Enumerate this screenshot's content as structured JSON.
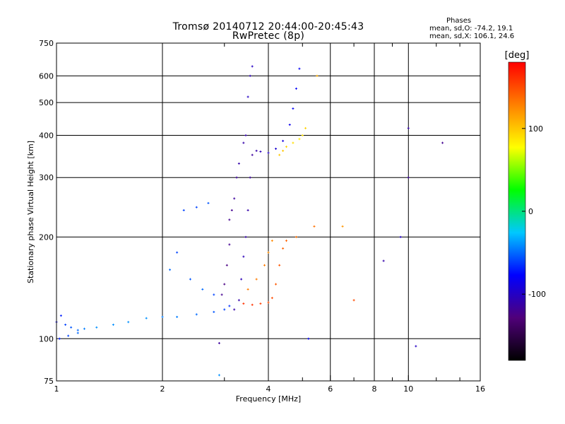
{
  "chart_data": {
    "type": "scatter",
    "title": "Tromsø 20140712 20:44:00-20:45:43",
    "subtitle": "RwPretec (8p)",
    "xlabel": "Frequency [MHz]",
    "ylabel": "Stationary phase Virtual Height [km]",
    "x_scale": "log",
    "y_scale": "log",
    "xlim": [
      1,
      16
    ],
    "ylim": [
      75,
      750
    ],
    "x_ticks": [
      1,
      2,
      4,
      6,
      8,
      10,
      16
    ],
    "x_tick_labels": [
      "1",
      "2",
      "4",
      "6",
      "8",
      "10",
      "16"
    ],
    "x_minor_ticks": [
      3,
      5,
      7,
      9,
      12,
      14
    ],
    "y_ticks": [
      75,
      100,
      200,
      300,
      400,
      500,
      600,
      750
    ],
    "y_tick_labels": [
      "75",
      "100",
      "200",
      "300",
      "400",
      "500",
      "600",
      "750"
    ],
    "grid": true,
    "stats": {
      "title": "Phases",
      "line1": "mean, sd,O: -74.2, 19.1",
      "line2": "mean, sd,X: 106.1, 24.6"
    },
    "colorbar": {
      "unit": "[deg]",
      "range": [
        -180,
        180
      ],
      "tick_values": [
        100,
        0,
        -100
      ],
      "tick_labels": [
        "100",
        "0",
        "-100"
      ],
      "colors": [
        "#000000",
        "#50007a",
        "#0000ff",
        "#00c8ff",
        "#00ff00",
        "#ffff00",
        "#ff8000",
        "#ff0000"
      ]
    },
    "series": [
      {
        "points": [
          [
            1.0,
            112,
            -80
          ],
          [
            1.03,
            117,
            -70
          ],
          [
            1.06,
            110,
            -60
          ],
          [
            1.1,
            108,
            -55
          ],
          [
            1.15,
            106,
            -50
          ],
          [
            1.2,
            107,
            -45
          ],
          [
            1.3,
            108,
            -40
          ],
          [
            1.45,
            110,
            -40
          ],
          [
            1.6,
            112,
            -40
          ],
          [
            1.8,
            115,
            -40
          ],
          [
            2.0,
            116,
            -45
          ],
          [
            2.2,
            116,
            -45
          ],
          [
            2.5,
            118,
            -50
          ],
          [
            2.8,
            120,
            -55
          ],
          [
            3.0,
            122,
            -60
          ],
          [
            3.1,
            125,
            -65
          ],
          [
            1.02,
            100,
            -70
          ],
          [
            1.08,
            102,
            -60
          ],
          [
            1.15,
            104,
            -50
          ]
        ]
      },
      {
        "points": [
          [
            3.2,
            122,
            -110
          ],
          [
            3.3,
            130,
            -110
          ],
          [
            3.35,
            150,
            -105
          ],
          [
            3.4,
            175,
            -105
          ],
          [
            3.45,
            200,
            -110
          ],
          [
            3.5,
            240,
            -110
          ],
          [
            3.55,
            300,
            -115
          ],
          [
            3.6,
            350,
            -115
          ],
          [
            3.7,
            360,
            -110
          ],
          [
            3.8,
            358,
            -105
          ],
          [
            4.0,
            355,
            -100
          ],
          [
            4.2,
            365,
            -95
          ],
          [
            4.4,
            385,
            -90
          ],
          [
            4.6,
            430,
            -85
          ],
          [
            4.7,
            480,
            -80
          ],
          [
            4.8,
            550,
            -80
          ],
          [
            4.9,
            630,
            -80
          ]
        ]
      },
      {
        "points": [
          [
            3.1,
            225,
            -120
          ],
          [
            3.15,
            240,
            -120
          ],
          [
            3.2,
            260,
            -115
          ],
          [
            3.1,
            190,
            -120
          ],
          [
            3.05,
            165,
            -125
          ],
          [
            3.0,
            145,
            -125
          ],
          [
            2.95,
            135,
            -120
          ],
          [
            3.25,
            300,
            -115
          ],
          [
            3.3,
            330,
            -110
          ],
          [
            3.4,
            380,
            -110
          ],
          [
            3.45,
            400,
            -110
          ],
          [
            3.55,
            600,
            -105
          ],
          [
            3.6,
            640,
            -100
          ],
          [
            3.5,
            520,
            -100
          ]
        ]
      },
      {
        "points": [
          [
            2.3,
            240,
            -60
          ],
          [
            2.5,
            245,
            -60
          ],
          [
            2.7,
            252,
            -55
          ],
          [
            2.1,
            160,
            -50
          ],
          [
            2.2,
            180,
            -60
          ],
          [
            2.4,
            150,
            -55
          ],
          [
            2.6,
            140,
            -50
          ],
          [
            2.8,
            135,
            -60
          ]
        ]
      },
      {
        "points": [
          [
            3.4,
            127,
            160
          ],
          [
            3.6,
            126,
            160
          ],
          [
            3.8,
            127,
            155
          ],
          [
            4.0,
            128,
            150
          ],
          [
            4.1,
            132,
            150
          ],
          [
            4.2,
            145,
            145
          ],
          [
            4.3,
            165,
            145
          ],
          [
            4.4,
            185,
            140
          ],
          [
            4.5,
            195,
            140
          ],
          [
            4.8,
            200,
            135
          ],
          [
            5.4,
            215,
            135
          ],
          [
            3.5,
            140,
            130
          ],
          [
            3.7,
            150,
            130
          ],
          [
            3.9,
            165,
            130
          ],
          [
            4.0,
            180,
            125
          ],
          [
            4.1,
            195,
            125
          ]
        ]
      },
      {
        "points": [
          [
            4.5,
            370,
            95
          ],
          [
            4.7,
            380,
            90
          ],
          [
            4.9,
            390,
            85
          ],
          [
            5.0,
            400,
            90
          ],
          [
            5.1,
            420,
            95
          ],
          [
            4.4,
            360,
            100
          ],
          [
            4.3,
            350,
            100
          ]
        ]
      },
      {
        "points": [
          [
            6.5,
            215,
            120
          ],
          [
            9.5,
            200,
            -100
          ],
          [
            10.0,
            420,
            -110
          ],
          [
            10.0,
            300,
            -115
          ],
          [
            12.5,
            380,
            -120
          ],
          [
            8.5,
            170,
            -110
          ],
          [
            7.0,
            130,
            150
          ],
          [
            5.5,
            600,
            110
          ],
          [
            10.5,
            95,
            -100
          ],
          [
            2.9,
            97,
            -115
          ],
          [
            2.9,
            78,
            -40
          ],
          [
            5.2,
            100,
            -80
          ]
        ]
      }
    ]
  }
}
